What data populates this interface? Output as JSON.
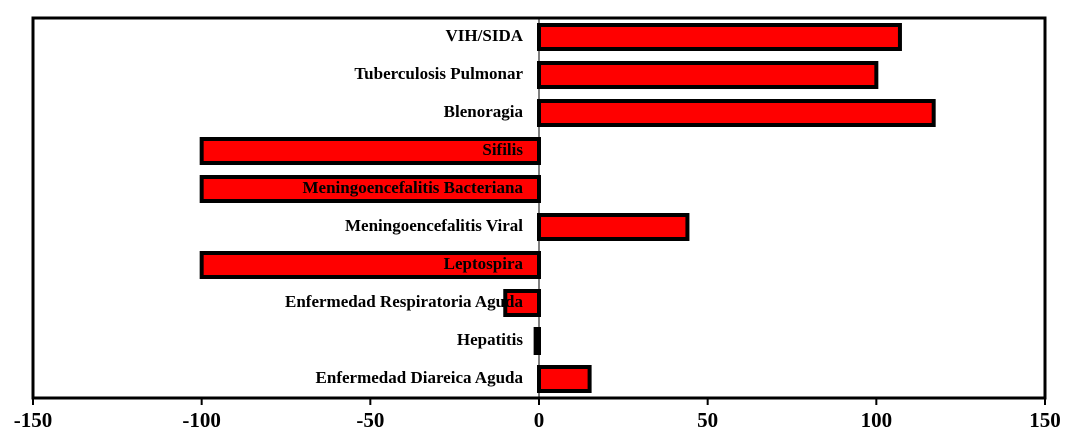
{
  "chart_data": {
    "type": "bar",
    "orientation": "horizontal",
    "categories": [
      "VIH/SIDA",
      "Tuberculosis Pulmonar",
      "Blenoragia",
      "Sifilis",
      "Meningoencefalitis Bacteriana",
      "Meningoencefalitis Viral",
      "Leptospira",
      "Enfermedad Respiratoria Aguda",
      "Hepatitis",
      "Enfermedad Diareica Aguda"
    ],
    "values": [
      107,
      100,
      117,
      -100,
      -100,
      44,
      -100,
      -10,
      -1,
      15
    ],
    "color": "#ff0000",
    "xlim": [
      -150,
      150
    ],
    "xticks": [
      -150,
      -100,
      -50,
      0,
      50,
      100,
      150
    ]
  }
}
